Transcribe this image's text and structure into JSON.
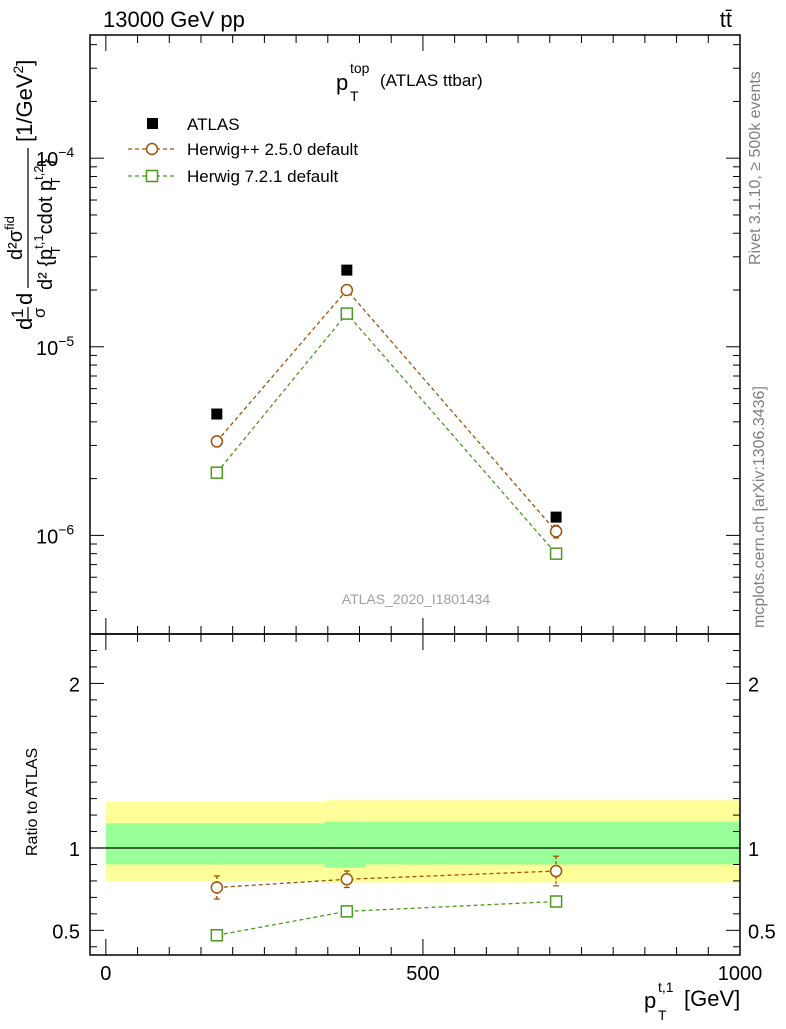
{
  "header": {
    "energy_label": "13000 GeV pp",
    "process_label": "tt̄"
  },
  "side_labels": {
    "rivet": "Rivet 3.1.10, ≥ 500k events",
    "mcplots": "mcplots.cern.ch [arXiv:1306.3436]"
  },
  "watermark": "ATLAS_2020_I1801434",
  "chart_data": [
    {
      "type": "line",
      "panel": "main",
      "title_main": "p",
      "title_sup": "top",
      "title_sub": "T",
      "title_rest": "(ATLAS ttbar)",
      "ylabel": "d²σ/d²{p_T^{t,1} cdot p_T^{t,2}} [1/GeV²]",
      "ylabel_parts": {
        "pre": "d",
        "frac_num": "1",
        "frac_den": "σ",
        "mid": "d",
        "num": "d²σ",
        "num_sup": "fid",
        "den_a": "d² {p",
        "den_sup1": "t,1",
        "den_sub1": "T",
        "den_b": "cdot p",
        "den_sup2": "t,2",
        "den_sub2": "T",
        "den_c": "}",
        "units": "[1/GeV",
        "units_sup": "2",
        "units_end": "]"
      },
      "yscale": "log",
      "ylim": [
        3e-07,
        0.00045
      ],
      "yticks": [
        {
          "value": 1e-06,
          "base": "10",
          "exp": "−6"
        },
        {
          "value": 1e-05,
          "base": "10",
          "exp": "−5"
        },
        {
          "value": 0.0001,
          "base": "10",
          "exp": "−4"
        }
      ],
      "xlim": [
        -25,
        1000
      ],
      "legend_position": "top-left",
      "series": [
        {
          "name": "ATLAS",
          "marker": "filled-square",
          "color": "#000000",
          "x": [
            175,
            380,
            710
          ],
          "y": [
            4.4e-06,
            2.55e-05,
            1.25e-06
          ]
        },
        {
          "name": "Herwig++ 2.5.0 default",
          "marker": "open-circle",
          "color": "#a0520a",
          "linestyle": "dashed",
          "x": [
            175,
            380,
            710
          ],
          "y": [
            3.15e-06,
            2e-05,
            1.05e-06
          ],
          "yerr": [
            2e-07,
            1e-06,
            8e-08
          ]
        },
        {
          "name": "Herwig 7.2.1 default",
          "marker": "open-square",
          "color": "#4a9a1e",
          "linestyle": "dashed",
          "x": [
            175,
            380,
            710
          ],
          "y": [
            2.15e-06,
            1.5e-05,
            8e-07
          ],
          "yerr": [
            8e-08,
            5e-07,
            3e-08
          ]
        }
      ]
    },
    {
      "type": "line",
      "panel": "ratio",
      "ylabel": "Ratio to ATLAS",
      "xlabel": "p_T^{t,1} [GeV]",
      "xlabel_parts": {
        "main": "p",
        "sup": "t,1",
        "sub": "T",
        "rest": "[GeV]"
      },
      "xlim": [
        -25,
        1000
      ],
      "xticks": [
        0,
        500,
        1000
      ],
      "ylim": [
        0.35,
        2.3
      ],
      "yticks": [
        0.5,
        1,
        2
      ],
      "reference_line": 1,
      "uncertainty_bands": [
        {
          "xmin": 0,
          "xmax": 345,
          "total": [
            0.8,
            1.28
          ],
          "stat": [
            0.9,
            1.15
          ]
        },
        {
          "xmin": 345,
          "xmax": 410,
          "total": [
            0.79,
            1.29
          ],
          "stat": [
            0.88,
            1.16
          ]
        },
        {
          "xmin": 410,
          "xmax": 1000,
          "total": [
            0.79,
            1.29
          ],
          "stat": [
            0.9,
            1.16
          ]
        }
      ],
      "band_colors": {
        "total": "#ffff99",
        "stat": "#99ff99"
      },
      "series": [
        {
          "name": "Herwig++ 2.5.0 default",
          "marker": "open-circle",
          "color": "#a0520a",
          "x": [
            175,
            380,
            710
          ],
          "y": [
            0.76,
            0.81,
            0.86
          ],
          "yerr": [
            0.07,
            0.05,
            0.09
          ]
        },
        {
          "name": "Herwig 7.2.1 default",
          "marker": "open-square",
          "color": "#4a9a1e",
          "x": [
            175,
            380,
            710
          ],
          "y": [
            0.47,
            0.615,
            0.675
          ],
          "yerr": [
            0.025,
            0.02,
            0.03
          ]
        }
      ]
    }
  ]
}
